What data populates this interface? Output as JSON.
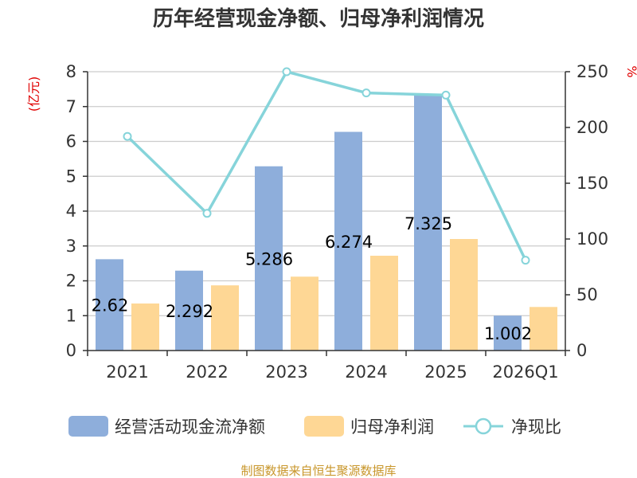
{
  "chart_data": {
    "type": "bar",
    "title": "历年经营现金净额、归母净利润情况",
    "categories": [
      "2021",
      "2022",
      "2023",
      "2024",
      "2025",
      "2026Q1"
    ],
    "y_left": {
      "unit_label": "(亿元)",
      "min": 0,
      "max": 8,
      "ticks": [
        "0",
        "1",
        "2",
        "3",
        "4",
        "5",
        "6",
        "7",
        "8"
      ]
    },
    "y_right": {
      "unit_label": "%",
      "min": 0,
      "max": 250,
      "ticks": [
        "0",
        "50",
        "100",
        "150",
        "200",
        "250"
      ]
    },
    "grid": true,
    "legend_position": "bottom",
    "series": [
      {
        "name": "经营活动现金流净额",
        "kind": "bar",
        "axis": "left",
        "color": "#8eaedb",
        "values": [
          2.62,
          2.292,
          5.286,
          6.274,
          7.325,
          1.002
        ],
        "labels": [
          "2.62",
          "2.292",
          "5.286",
          "6.274",
          "7.325",
          "1.002"
        ]
      },
      {
        "name": "归母净利润",
        "kind": "bar",
        "axis": "left",
        "color": "#fed795",
        "values": [
          1.35,
          1.87,
          2.12,
          2.72,
          3.2,
          1.25
        ]
      },
      {
        "name": "净现比",
        "kind": "line",
        "axis": "right",
        "color": "#86d4da",
        "values": [
          192,
          123,
          250,
          231,
          229,
          81
        ]
      }
    ],
    "source": "制图数据来自恒生聚源数据库"
  }
}
